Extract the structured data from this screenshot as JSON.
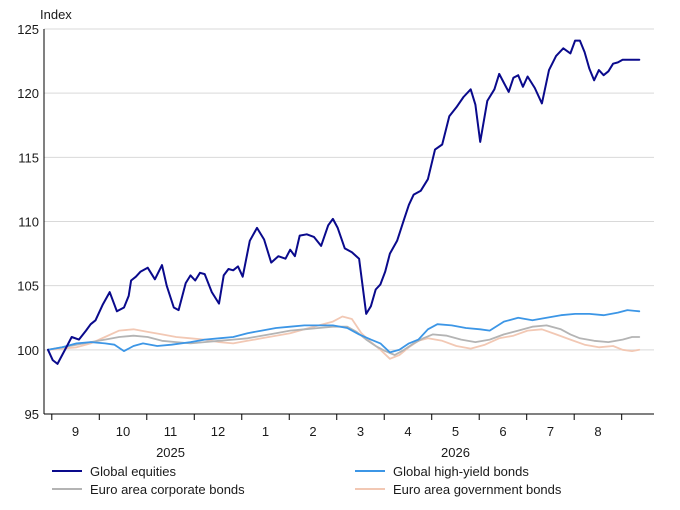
{
  "chart_data": {
    "type": "line",
    "ylabel": "Index",
    "ylim": [
      95,
      125
    ],
    "yticks": [
      "95",
      "100",
      "105",
      "110",
      "115",
      "120",
      "125"
    ],
    "x_months": [
      {
        "label": "9",
        "index": 1
      },
      {
        "label": "10",
        "index": 2
      },
      {
        "label": "11",
        "index": 3
      },
      {
        "label": "12",
        "index": 4
      },
      {
        "label": "1",
        "index": 5
      },
      {
        "label": "2",
        "index": 6
      },
      {
        "label": "3",
        "index": 7
      },
      {
        "label": "4",
        "index": 8
      },
      {
        "label": "5",
        "index": 9
      },
      {
        "label": "6",
        "index": 10
      },
      {
        "label": "7",
        "index": 11
      },
      {
        "label": "8",
        "index": 12
      }
    ],
    "x_years": [
      {
        "label": "2025",
        "index": 2.5
      },
      {
        "label": "2026",
        "index": 8.5
      }
    ],
    "x_range_months": [
      0,
      12.55
    ],
    "grid": "horizontal",
    "legend_position": "bottom",
    "series": [
      {
        "name": "Global equities",
        "color": "#0a0a8c",
        "x": [
          0.0,
          0.1,
          0.2,
          0.3,
          0.4,
          0.5,
          0.65,
          0.8,
          0.9,
          1.0,
          1.15,
          1.3,
          1.45,
          1.6,
          1.7,
          1.75,
          1.85,
          1.95,
          2.1,
          2.25,
          2.4,
          2.5,
          2.65,
          2.75,
          2.9,
          3.0,
          3.1,
          3.2,
          3.3,
          3.45,
          3.6,
          3.7,
          3.8,
          3.9,
          4.0,
          4.1,
          4.25,
          4.4,
          4.55,
          4.7,
          4.85,
          5.0,
          5.1,
          5.2,
          5.3,
          5.45,
          5.6,
          5.75,
          5.9,
          6.0,
          6.1,
          6.25,
          6.4,
          6.55,
          6.7,
          6.8,
          6.9,
          7.0,
          7.1,
          7.2,
          7.35,
          7.5,
          7.6,
          7.7,
          7.85,
          8.0,
          8.15,
          8.3,
          8.45,
          8.6,
          8.75,
          8.9,
          9.0,
          9.1,
          9.25,
          9.4,
          9.5,
          9.6,
          9.7,
          9.8,
          9.9,
          10.0,
          10.1,
          10.25,
          10.4,
          10.55,
          10.7,
          10.85,
          11.0,
          11.1,
          11.2,
          11.3,
          11.4,
          11.5,
          11.6,
          11.7,
          11.8,
          11.9,
          12.0,
          12.1,
          12.2,
          12.35,
          12.45
        ],
        "values": [
          100.0,
          99.2,
          98.9,
          99.6,
          100.3,
          101.0,
          100.8,
          101.5,
          102.0,
          102.3,
          103.5,
          104.5,
          103.0,
          103.3,
          104.2,
          105.4,
          105.7,
          106.1,
          106.4,
          105.5,
          106.6,
          105.0,
          103.3,
          103.1,
          105.2,
          105.8,
          105.4,
          106.0,
          105.9,
          104.5,
          103.6,
          105.8,
          106.3,
          106.2,
          106.5,
          105.7,
          108.5,
          109.5,
          108.6,
          106.8,
          107.3,
          107.1,
          107.8,
          107.3,
          108.9,
          109.0,
          108.8,
          108.1,
          109.7,
          110.2,
          109.5,
          107.9,
          107.6,
          107.1,
          102.8,
          103.4,
          104.7,
          105.1,
          106.1,
          107.5,
          108.5,
          110.2,
          111.3,
          112.1,
          112.4,
          113.3,
          115.6,
          116.0,
          118.2,
          118.9,
          119.7,
          120.3,
          119.1,
          116.2,
          119.4,
          120.3,
          121.5,
          120.8,
          120.1,
          121.2,
          121.4,
          120.5,
          121.3,
          120.4,
          119.2,
          121.8,
          122.9,
          123.5,
          123.1,
          124.1,
          124.1,
          123.2,
          121.9,
          121.0,
          121.8,
          121.4,
          121.7,
          122.3,
          122.4,
          122.6,
          122.6,
          122.6,
          122.6
        ]
      },
      {
        "name": "Global high-yield bonds",
        "color": "#3c96e6",
        "x": [
          0.0,
          0.3,
          0.6,
          0.9,
          1.2,
          1.4,
          1.6,
          1.8,
          2.0,
          2.3,
          2.6,
          3.0,
          3.3,
          3.6,
          3.9,
          4.2,
          4.5,
          4.8,
          5.1,
          5.4,
          5.7,
          6.0,
          6.3,
          6.55,
          6.8,
          7.0,
          7.2,
          7.4,
          7.6,
          7.8,
          8.0,
          8.2,
          8.5,
          8.8,
          9.1,
          9.3,
          9.6,
          9.9,
          10.2,
          10.5,
          10.8,
          11.1,
          11.4,
          11.7,
          12.0,
          12.2,
          12.45
        ],
        "values": [
          100.0,
          100.2,
          100.5,
          100.6,
          100.5,
          100.4,
          99.9,
          100.3,
          100.5,
          100.3,
          100.4,
          100.6,
          100.8,
          100.9,
          101.0,
          101.3,
          101.5,
          101.7,
          101.8,
          101.9,
          101.9,
          101.9,
          101.7,
          101.2,
          100.8,
          100.5,
          99.8,
          100.0,
          100.5,
          100.8,
          101.6,
          102.0,
          101.9,
          101.7,
          101.6,
          101.5,
          102.2,
          102.5,
          102.3,
          102.5,
          102.7,
          102.8,
          102.8,
          102.7,
          102.9,
          103.1,
          103.0
        ]
      },
      {
        "name": "Euro area corporate bonds",
        "color": "#b4b4b4",
        "x": [
          0.0,
          0.3,
          0.6,
          0.9,
          1.2,
          1.5,
          1.8,
          2.1,
          2.4,
          2.7,
          3.0,
          3.3,
          3.6,
          3.9,
          4.2,
          4.5,
          4.8,
          5.1,
          5.4,
          5.7,
          6.0,
          6.3,
          6.5,
          6.7,
          6.9,
          7.1,
          7.3,
          7.5,
          7.7,
          7.9,
          8.1,
          8.4,
          8.7,
          9.0,
          9.3,
          9.6,
          9.9,
          10.2,
          10.5,
          10.8,
          11.0,
          11.2,
          11.5,
          11.8,
          12.1,
          12.3,
          12.45
        ],
        "values": [
          100.0,
          100.2,
          100.4,
          100.6,
          100.8,
          101.0,
          101.1,
          101.0,
          100.7,
          100.6,
          100.5,
          100.6,
          100.7,
          100.8,
          100.9,
          101.1,
          101.3,
          101.5,
          101.6,
          101.7,
          101.8,
          101.8,
          101.4,
          100.8,
          100.3,
          99.9,
          99.6,
          100.0,
          100.5,
          100.9,
          101.2,
          101.1,
          100.8,
          100.6,
          100.8,
          101.2,
          101.5,
          101.8,
          101.9,
          101.6,
          101.2,
          100.9,
          100.7,
          100.6,
          100.8,
          101.0,
          101.0
        ]
      },
      {
        "name": "Euro area government bonds",
        "color": "#f2c8b4",
        "x": [
          0.0,
          0.3,
          0.6,
          0.9,
          1.2,
          1.5,
          1.8,
          2.1,
          2.4,
          2.7,
          3.0,
          3.3,
          3.6,
          3.9,
          4.2,
          4.5,
          4.8,
          5.1,
          5.4,
          5.7,
          6.0,
          6.2,
          6.4,
          6.6,
          6.8,
          7.0,
          7.2,
          7.4,
          7.6,
          7.8,
          8.0,
          8.3,
          8.6,
          8.9,
          9.2,
          9.5,
          9.8,
          10.1,
          10.4,
          10.7,
          11.0,
          11.3,
          11.6,
          11.9,
          12.1,
          12.3,
          12.45
        ],
        "values": [
          100.0,
          100.1,
          100.2,
          100.5,
          101.0,
          101.5,
          101.6,
          101.4,
          101.2,
          101.0,
          100.9,
          100.8,
          100.6,
          100.5,
          100.7,
          100.9,
          101.1,
          101.3,
          101.6,
          101.9,
          102.2,
          102.6,
          102.4,
          101.3,
          100.6,
          100.0,
          99.3,
          99.6,
          100.2,
          100.7,
          100.9,
          100.7,
          100.3,
          100.1,
          100.4,
          100.9,
          101.1,
          101.5,
          101.6,
          101.2,
          100.8,
          100.4,
          100.2,
          100.3,
          100.0,
          99.9,
          100.0
        ]
      }
    ]
  }
}
